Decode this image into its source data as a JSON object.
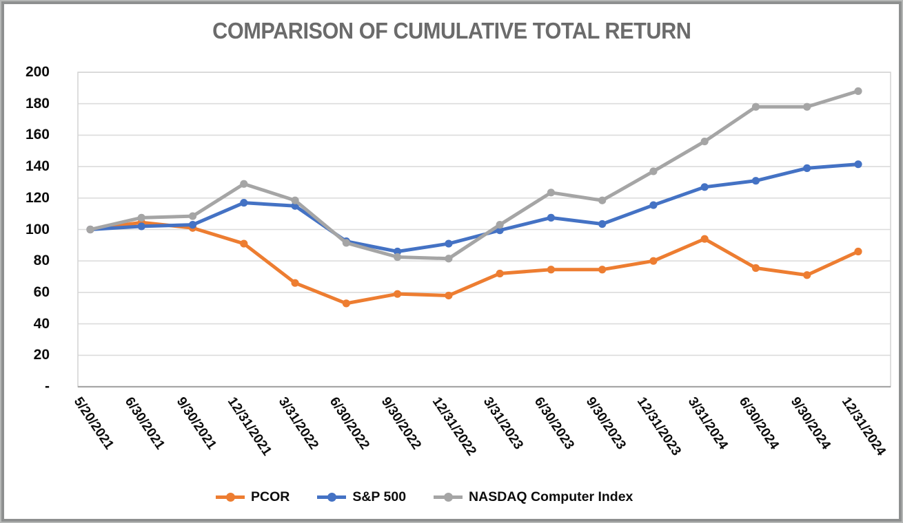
{
  "title": "COMPARISON OF CUMULATIVE TOTAL RETURN",
  "chart_data": {
    "type": "line",
    "title": "COMPARISON OF CUMULATIVE TOTAL RETURN",
    "xlabel": "",
    "ylabel": "",
    "ylim": [
      0,
      200
    ],
    "grid": true,
    "legend_position": "bottom",
    "categories": [
      "5/20/2021",
      "6/30/2021",
      "9/30/2021",
      "12/31/2021",
      "3/31/2022",
      "6/30/2022",
      "9/30/2022",
      "12/31/2022",
      "3/31/2023",
      "6/30/2023",
      "9/30/2023",
      "12/31/2023",
      "3/31/2024",
      "6/30/2024",
      "9/30/2024",
      "12/31/2024"
    ],
    "yticks": [
      {
        "label": "200",
        "value": 200
      },
      {
        "label": "180",
        "value": 180
      },
      {
        "label": "160",
        "value": 160
      },
      {
        "label": "140",
        "value": 140
      },
      {
        "label": "120",
        "value": 120
      },
      {
        "label": "100",
        "value": 100
      },
      {
        "label": "80",
        "value": 80
      },
      {
        "label": "60",
        "value": 60
      },
      {
        "label": "40",
        "value": 40
      },
      {
        "label": "20",
        "value": 20
      },
      {
        "label": "-",
        "value": 0
      }
    ],
    "series": [
      {
        "name": "PCOR",
        "color": "#ED7D31",
        "values": [
          100,
          104.5,
          101,
          91,
          66,
          53,
          59,
          58,
          72,
          74.5,
          74.5,
          80,
          94,
          75.5,
          71,
          86
        ]
      },
      {
        "name": "S&P 500",
        "color": "#4472C4",
        "values": [
          100,
          102,
          103,
          117,
          115,
          92.5,
          86,
          91,
          99.5,
          107.5,
          103.5,
          115.5,
          127,
          131,
          139,
          141.5
        ]
      },
      {
        "name": "NASDAQ Computer Index",
        "color": "#A5A5A5",
        "values": [
          100,
          107.5,
          108.5,
          129,
          118.5,
          91.5,
          82.5,
          81.5,
          103,
          123.5,
          118.5,
          137,
          156,
          178,
          178,
          188
        ]
      }
    ]
  },
  "style_colors": {
    "gridline": "#dcdcdc",
    "plot_border": "#d5d5d5",
    "axis_line": "#a6a6a6",
    "title_color": "#6b6b6b"
  }
}
